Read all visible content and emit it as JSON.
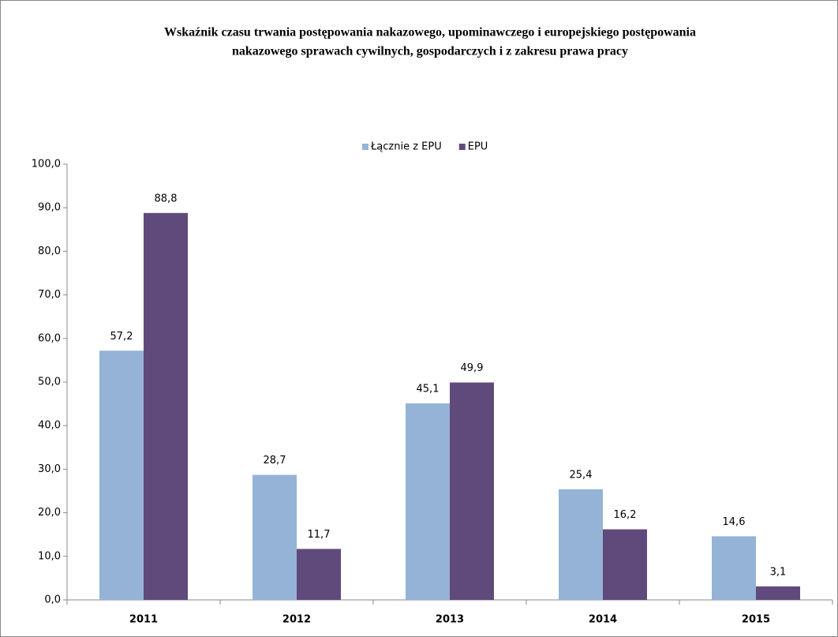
{
  "chart_data": {
    "type": "bar",
    "title": [
      "Wskaźnik czasu trwania postępowania nakazowego, upominawczego i europejskiego postępowania",
      "nakazowego sprawach cywilnych, gospodarczych i z zakresu prawa pracy"
    ],
    "categories": [
      "2011",
      "2012",
      "2013",
      "2014",
      "2015"
    ],
    "series": [
      {
        "name": "Łącznie z EPU",
        "color": "#95b3d7",
        "values": [
          57.2,
          28.7,
          45.1,
          25.4,
          14.6
        ],
        "value_labels": [
          "57,2",
          "28,7",
          "45,1",
          "25,4",
          "14,6"
        ]
      },
      {
        "name": "EPU",
        "color": "#604a7b",
        "values": [
          88.8,
          11.7,
          49.9,
          16.2,
          3.1
        ],
        "value_labels": [
          "88,8",
          "11,7",
          "49,9",
          "16,2",
          "3,1"
        ]
      }
    ],
    "ylim": [
      0,
      100
    ],
    "yticks": [
      {
        "value": 0,
        "label": "0,0"
      },
      {
        "value": 10,
        "label": "10,0"
      },
      {
        "value": 20,
        "label": "20,0"
      },
      {
        "value": 30,
        "label": "30,0"
      },
      {
        "value": 40,
        "label": "40,0"
      },
      {
        "value": 50,
        "label": "50,0"
      },
      {
        "value": 60,
        "label": "60,0"
      },
      {
        "value": 70,
        "label": "70,0"
      },
      {
        "value": 80,
        "label": "80,0"
      },
      {
        "value": 90,
        "label": "90,0"
      },
      {
        "value": 100,
        "label": "100,0"
      }
    ],
    "grid": false,
    "legend": "top"
  }
}
